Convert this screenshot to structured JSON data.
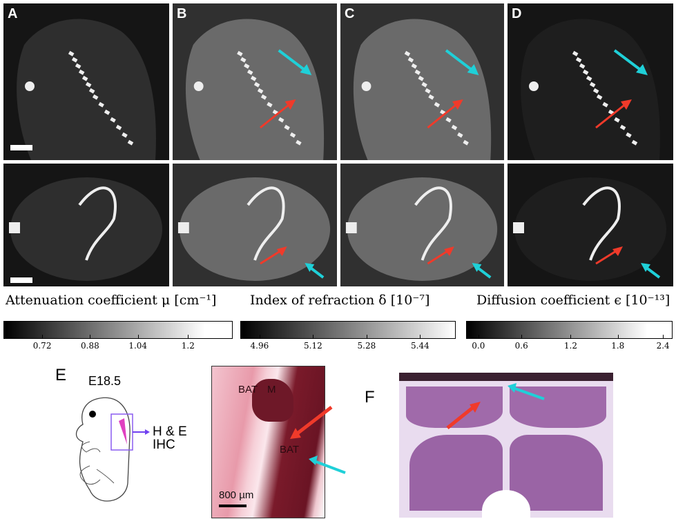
{
  "panels": {
    "top": [
      "A",
      "B",
      "C",
      "D"
    ],
    "E": "E",
    "F": "F"
  },
  "colorbars": [
    {
      "title": "Attenuation coefficient μ [cm⁻¹]",
      "ticks": [
        "0.72",
        "0.88",
        "1.04",
        "1.2"
      ]
    },
    {
      "title": "Index of refraction δ [10⁻⁷]",
      "ticks": [
        "4.96",
        "5.12",
        "5.28",
        "5.44"
      ]
    },
    {
      "title": "Diffusion coefficient ϵ [10⁻¹³]",
      "ticks": [
        "0.0",
        "0.6",
        "1.2",
        "1.8",
        "2.4"
      ]
    }
  ],
  "schematic": {
    "stage": "E18.5",
    "methods": [
      "H & E",
      "IHC"
    ]
  },
  "histology": {
    "labels": [
      "BAT",
      "M",
      "BAT"
    ],
    "scalebar": "800 µm"
  },
  "colors": {
    "red_arrow": "#f03a2a",
    "cyan_arrow": "#1fd0d8",
    "stain": "#7a1a2a"
  }
}
